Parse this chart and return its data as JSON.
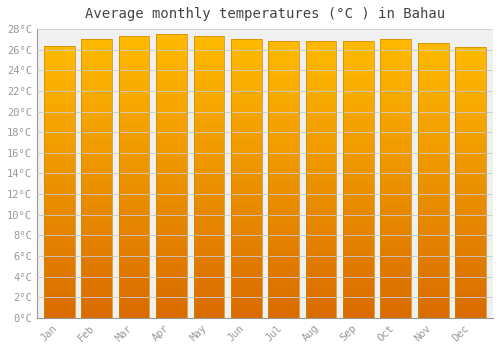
{
  "title": "Average monthly temperatures (°C ) in Bahau",
  "months": [
    "Jan",
    "Feb",
    "Mar",
    "Apr",
    "May",
    "Jun",
    "Jul",
    "Aug",
    "Sep",
    "Oct",
    "Nov",
    "Dec"
  ],
  "temperatures": [
    26.4,
    27.0,
    27.3,
    27.5,
    27.3,
    27.0,
    26.8,
    26.8,
    26.8,
    27.0,
    26.6,
    26.3
  ],
  "bar_color_top": "#FFB800",
  "bar_color_bottom": "#E07000",
  "ylim": [
    0,
    28
  ],
  "ytick_step": 2,
  "background_color": "#FFFFFF",
  "plot_bg_color": "#F0F0F0",
  "grid_color": "#CCCCCC",
  "title_fontsize": 10,
  "tick_fontsize": 7.5,
  "tick_label_color": "#999999",
  "title_color": "#444444",
  "bar_width": 0.82
}
